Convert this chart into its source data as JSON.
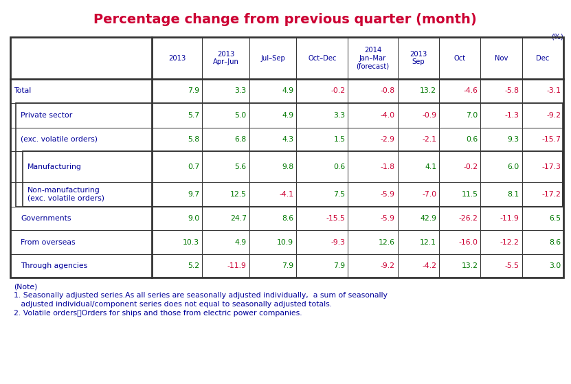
{
  "title": "Percentage change from previous quarter (month)",
  "title_color": "#cc0033",
  "title_fontsize": 14,
  "unit_label": "(%)",
  "col_headers": [
    "2013",
    "2013\nApr–Jun",
    "Jul–Sep",
    "Oct–Dec",
    "2014\nJan–Mar\n(forecast)",
    "2013\nSep",
    "Oct",
    "Nov",
    "Dec"
  ],
  "row_labels": [
    "Total",
    "Private sector",
    "(exc. volatile orders)",
    "Manufacturing",
    "Non-manufacturing\n(exc. volatile orders)",
    "Governments",
    "From overseas",
    "Through agencies"
  ],
  "data": [
    [
      "7.9",
      "3.3",
      "4.9",
      "-0.2",
      "-0.8",
      "13.2",
      "-4.6",
      "-5.8",
      "-3.1"
    ],
    [
      "5.7",
      "5.0",
      "4.9",
      "3.3",
      "-4.0",
      "-0.9",
      "7.0",
      "-1.3",
      "-9.2"
    ],
    [
      "5.8",
      "6.8",
      "4.3",
      "1.5",
      "-2.9",
      "-2.1",
      "0.6",
      "9.3",
      "-15.7"
    ],
    [
      "0.7",
      "5.6",
      "9.8",
      "0.6",
      "-1.8",
      "4.1",
      "-0.2",
      "6.0",
      "-17.3"
    ],
    [
      "9.7",
      "12.5",
      "-4.1",
      "7.5",
      "-5.9",
      "-7.0",
      "11.5",
      "8.1",
      "-17.2"
    ],
    [
      "9.0",
      "24.7",
      "8.6",
      "-15.5",
      "-5.9",
      "42.9",
      "-26.2",
      "-11.9",
      "6.5"
    ],
    [
      "10.3",
      "4.9",
      "10.9",
      "-9.3",
      "12.6",
      "12.1",
      "-16.0",
      "-12.2",
      "8.6"
    ],
    [
      "5.2",
      "-11.9",
      "7.9",
      "7.9",
      "-9.2",
      "-4.2",
      "13.2",
      "-5.5",
      "3.0"
    ]
  ],
  "negative_color": "#cc0033",
  "positive_color": "#007700",
  "label_color": "#000099",
  "header_color": "#000099",
  "background_color": "#ffffff",
  "table_border_color": "#333333",
  "note_lines": [
    "(Note)",
    "1. Seasonally adjusted series.As all series are seasonally adjusted individually,  a sum of seasonally",
    "   adjusted individual/component series does not equal to seasonally adjusted totals.",
    "2. Volatile orders：Orders for ships and those from electric power companies."
  ],
  "note_color": "#000099",
  "note_fontsize": 7.8
}
